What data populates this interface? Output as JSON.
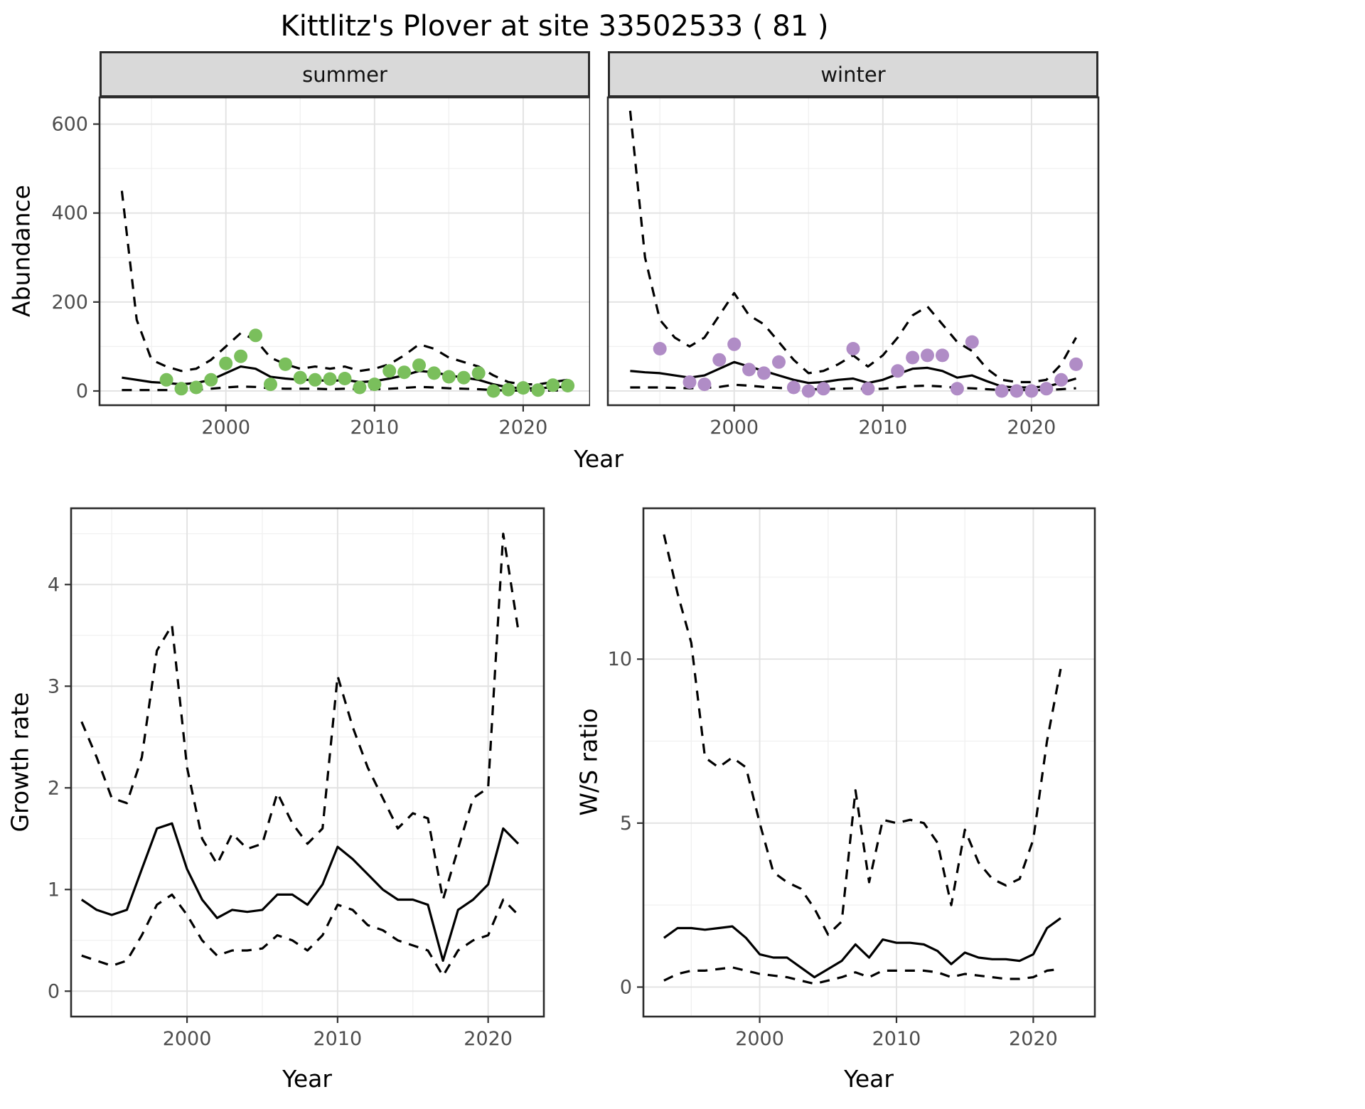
{
  "title": "Kittlitz's Plover at site 33502533 ( 81 )",
  "colors": {
    "summer": "#7abf5c",
    "winter": "#b08cc6",
    "line": "#000000",
    "strip_bg": "#d9d9d9",
    "grid_major": "#e2e2e2",
    "grid_minor": "#f0f0f0",
    "border": "#2b2b2b",
    "tick_label": "#4d4d4d"
  },
  "chart_data": [
    {
      "id": "abundance-summer",
      "type": "line",
      "facet_label": "summer",
      "xlabel": "Year",
      "ylabel": "Abundance",
      "xlim": [
        1991.5,
        2024.5
      ],
      "ylim": [
        -32,
        660
      ],
      "xticks": [
        2000,
        2010,
        2020
      ],
      "yticks": [
        0,
        200,
        400,
        600
      ],
      "xminor": [
        1995,
        2005,
        2015
      ],
      "yminor": [
        100,
        300,
        500
      ],
      "x_years": [
        1993,
        1994,
        1995,
        1996,
        1997,
        1998,
        1999,
        2000,
        2001,
        2002,
        2003,
        2004,
        2005,
        2006,
        2007,
        2008,
        2009,
        2010,
        2011,
        2012,
        2013,
        2014,
        2015,
        2016,
        2017,
        2018,
        2019,
        2020,
        2021,
        2022,
        2023
      ],
      "series": [
        {
          "name": "upper-ci",
          "style": "dashed",
          "y": [
            450,
            160,
            70,
            55,
            45,
            50,
            70,
            100,
            130,
            115,
            75,
            60,
            50,
            55,
            50,
            55,
            45,
            50,
            60,
            80,
            105,
            95,
            75,
            65,
            55,
            35,
            20,
            15,
            15,
            20,
            25
          ]
        },
        {
          "name": "lower-ci",
          "style": "dashed",
          "y": [
            2,
            2,
            2,
            2,
            2,
            3,
            5,
            8,
            10,
            9,
            6,
            5,
            5,
            5,
            4,
            5,
            4,
            4,
            5,
            7,
            9,
            8,
            6,
            5,
            4,
            2,
            1,
            1,
            1,
            1,
            2
          ]
        },
        {
          "name": "median",
          "style": "solid",
          "y": [
            30,
            25,
            20,
            18,
            15,
            18,
            25,
            40,
            55,
            50,
            32,
            28,
            25,
            25,
            22,
            25,
            20,
            22,
            28,
            35,
            45,
            42,
            35,
            30,
            25,
            15,
            8,
            6,
            6,
            8,
            10
          ]
        },
        {
          "name": "observed-counts",
          "style": "points",
          "color_key": "summer",
          "x": [
            1996,
            1997,
            1998,
            1999,
            2000,
            2001,
            2002,
            2003,
            2004,
            2005,
            2006,
            2007,
            2008,
            2009,
            2010,
            2011,
            2012,
            2013,
            2014,
            2015,
            2016,
            2017,
            2018,
            2019,
            2020,
            2021,
            2022,
            2023
          ],
          "y": [
            25,
            5,
            8,
            25,
            62,
            78,
            125,
            15,
            60,
            30,
            25,
            27,
            28,
            8,
            15,
            45,
            42,
            58,
            40,
            32,
            30,
            40,
            0,
            3,
            7,
            2,
            13,
            12
          ]
        }
      ]
    },
    {
      "id": "abundance-winter",
      "type": "line",
      "facet_label": "winter",
      "xlabel": "Year",
      "ylabel": "Abundance",
      "xlim": [
        1991.5,
        2024.5
      ],
      "ylim": [
        -32,
        660
      ],
      "xticks": [
        2000,
        2010,
        2020
      ],
      "yticks": [
        0,
        200,
        400,
        600
      ],
      "xminor": [
        1995,
        2005,
        2015
      ],
      "yminor": [
        100,
        300,
        500
      ],
      "x_years": [
        1993,
        1994,
        1995,
        1996,
        1997,
        1998,
        1999,
        2000,
        2001,
        2002,
        2003,
        2004,
        2005,
        2006,
        2007,
        2008,
        2009,
        2010,
        2011,
        2012,
        2013,
        2014,
        2015,
        2016,
        2017,
        2018,
        2019,
        2020,
        2021,
        2022,
        2023
      ],
      "series": [
        {
          "name": "upper-ci",
          "style": "dashed",
          "y": [
            630,
            300,
            160,
            120,
            100,
            120,
            170,
            220,
            170,
            150,
            110,
            70,
            40,
            45,
            60,
            80,
            55,
            80,
            120,
            170,
            190,
            150,
            110,
            90,
            50,
            25,
            20,
            20,
            25,
            60,
            120
          ]
        },
        {
          "name": "lower-ci",
          "style": "dashed",
          "y": [
            8,
            8,
            8,
            7,
            6,
            7,
            9,
            14,
            12,
            9,
            7,
            5,
            4,
            4,
            5,
            6,
            4,
            5,
            8,
            11,
            12,
            10,
            7,
            6,
            4,
            2,
            2,
            2,
            2,
            4,
            6
          ]
        },
        {
          "name": "median",
          "style": "solid",
          "y": [
            45,
            42,
            40,
            35,
            30,
            35,
            50,
            65,
            55,
            45,
            35,
            25,
            18,
            20,
            25,
            28,
            18,
            25,
            38,
            50,
            52,
            45,
            30,
            35,
            22,
            10,
            8,
            8,
            10,
            18,
            28
          ]
        },
        {
          "name": "observed-counts",
          "style": "points",
          "color_key": "winter",
          "x": [
            1995,
            1997,
            1998,
            1999,
            2000,
            2001,
            2002,
            2003,
            2004,
            2005,
            2006,
            2008,
            2009,
            2011,
            2012,
            2013,
            2014,
            2015,
            2016,
            2018,
            2019,
            2020,
            2021,
            2022,
            2023
          ],
          "y": [
            95,
            20,
            15,
            70,
            105,
            48,
            40,
            65,
            8,
            0,
            5,
            95,
            5,
            45,
            75,
            80,
            80,
            5,
            110,
            0,
            0,
            0,
            5,
            25,
            60
          ]
        }
      ]
    },
    {
      "id": "growth-rate",
      "type": "line",
      "facet_label": "",
      "xlabel": "Year",
      "ylabel": "Growth rate",
      "xlim": [
        1992.3,
        2023.7
      ],
      "ylim": [
        -0.25,
        4.75
      ],
      "xticks": [
        2000,
        2010,
        2020
      ],
      "yticks": [
        0,
        1,
        2,
        3,
        4
      ],
      "xminor": [
        1995,
        2005,
        2015
      ],
      "yminor": [
        0.5,
        1.5,
        2.5,
        3.5,
        4.5
      ],
      "x_years": [
        1993,
        1994,
        1995,
        1996,
        1997,
        1998,
        1999,
        2000,
        2001,
        2002,
        2003,
        2004,
        2005,
        2006,
        2007,
        2008,
        2009,
        2010,
        2011,
        2012,
        2013,
        2014,
        2015,
        2016,
        2017,
        2018,
        2019,
        2020,
        2021,
        2022
      ],
      "series": [
        {
          "name": "upper-ci",
          "style": "dashed",
          "y": [
            2.65,
            2.3,
            1.9,
            1.85,
            2.3,
            3.35,
            3.6,
            2.2,
            1.5,
            1.25,
            1.55,
            1.4,
            1.45,
            1.95,
            1.65,
            1.45,
            1.6,
            3.1,
            2.6,
            2.2,
            1.9,
            1.6,
            1.75,
            1.7,
            0.9,
            1.4,
            1.9,
            2.0,
            4.5,
            3.55
          ]
        },
        {
          "name": "lower-ci",
          "style": "dashed",
          "y": [
            0.35,
            0.3,
            0.25,
            0.3,
            0.55,
            0.85,
            0.95,
            0.75,
            0.5,
            0.35,
            0.4,
            0.4,
            0.42,
            0.55,
            0.5,
            0.4,
            0.55,
            0.85,
            0.8,
            0.65,
            0.6,
            0.5,
            0.45,
            0.4,
            0.15,
            0.4,
            0.5,
            0.55,
            0.9,
            0.75
          ]
        },
        {
          "name": "median",
          "style": "solid",
          "y": [
            0.9,
            0.8,
            0.75,
            0.8,
            1.2,
            1.6,
            1.65,
            1.2,
            0.9,
            0.72,
            0.8,
            0.78,
            0.8,
            0.95,
            0.95,
            0.85,
            1.05,
            1.42,
            1.3,
            1.15,
            1.0,
            0.9,
            0.9,
            0.85,
            0.3,
            0.8,
            0.9,
            1.05,
            1.6,
            1.45
          ]
        }
      ]
    },
    {
      "id": "ws-ratio",
      "type": "line",
      "facet_label": "",
      "xlabel": "Year",
      "ylabel": "W/S ratio",
      "xlim": [
        1991.5,
        2024.5
      ],
      "ylim": [
        -0.9,
        14.6
      ],
      "xticks": [
        2000,
        2010,
        2020
      ],
      "yticks": [
        0,
        5,
        10
      ],
      "xminor": [
        1995,
        2005,
        2015
      ],
      "yminor": [
        2.5,
        7.5,
        12.5
      ],
      "x_years": [
        1993,
        1994,
        1995,
        1996,
        1997,
        1998,
        1999,
        2000,
        2001,
        2002,
        2003,
        2004,
        2005,
        2006,
        2007,
        2008,
        2009,
        2010,
        2011,
        2012,
        2013,
        2014,
        2015,
        2016,
        2017,
        2018,
        2019,
        2020,
        2021,
        2022
      ],
      "series": [
        {
          "name": "upper-ci",
          "style": "dashed",
          "y": [
            13.8,
            12.0,
            10.5,
            7.0,
            6.7,
            7.0,
            6.7,
            5.0,
            3.5,
            3.2,
            3.0,
            2.4,
            1.6,
            2.0,
            6.0,
            3.2,
            5.1,
            5.0,
            5.1,
            5.0,
            4.4,
            2.5,
            4.8,
            3.8,
            3.3,
            3.1,
            3.3,
            4.5,
            7.5,
            9.7
          ]
        },
        {
          "name": "lower-ci",
          "style": "dashed",
          "y": [
            0.2,
            0.4,
            0.5,
            0.5,
            0.55,
            0.6,
            0.5,
            0.4,
            0.35,
            0.3,
            0.2,
            0.1,
            0.2,
            0.3,
            0.45,
            0.3,
            0.5,
            0.5,
            0.5,
            0.5,
            0.45,
            0.3,
            0.4,
            0.35,
            0.3,
            0.25,
            0.25,
            0.3,
            0.5,
            0.55
          ]
        },
        {
          "name": "median",
          "style": "solid",
          "y": [
            1.5,
            1.8,
            1.8,
            1.75,
            1.8,
            1.85,
            1.5,
            1.0,
            0.9,
            0.9,
            0.6,
            0.3,
            0.55,
            0.8,
            1.3,
            0.9,
            1.45,
            1.35,
            1.35,
            1.3,
            1.1,
            0.7,
            1.05,
            0.9,
            0.85,
            0.85,
            0.8,
            1.0,
            1.8,
            2.1
          ]
        }
      ]
    }
  ]
}
